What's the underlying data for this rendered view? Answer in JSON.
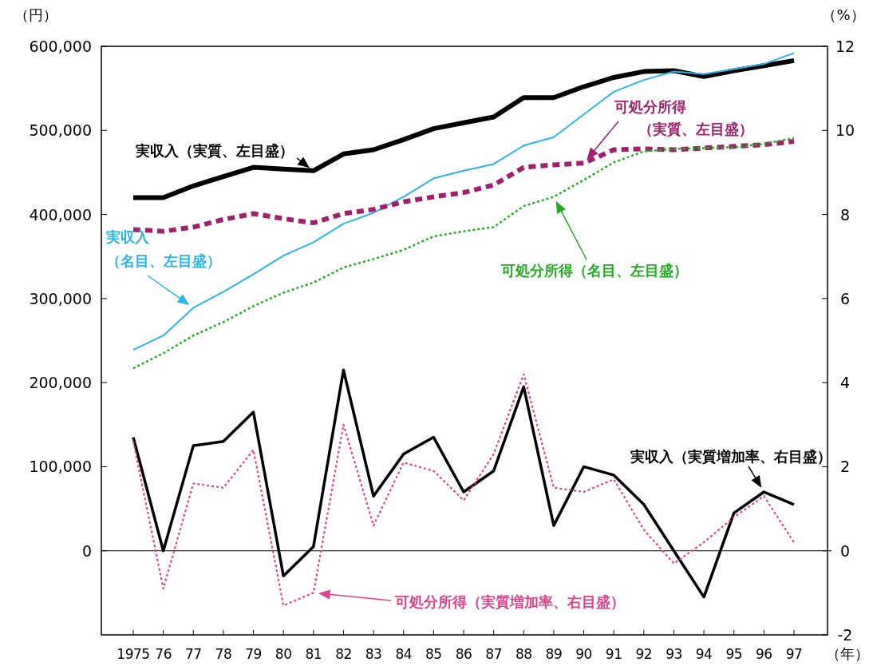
{
  "chart_data": {
    "type": "line",
    "ylabel": "（円）",
    "y2label": "（%）",
    "xlabel": "（年）",
    "categories": [
      "1975",
      "76",
      "77",
      "78",
      "79",
      "80",
      "81",
      "82",
      "83",
      "84",
      "85",
      "86",
      "87",
      "88",
      "89",
      "90",
      "91",
      "92",
      "93",
      "94",
      "95",
      "96",
      "97"
    ],
    "ylim": [
      -100000,
      600000
    ],
    "yticks": [
      0,
      {
        "value": 100000,
        "label": "100,000"
      },
      {
        "value": 200000,
        "label": "200,000"
      },
      {
        "value": 300000,
        "label": "300,000"
      },
      {
        "value": 400000,
        "label": "400,000"
      },
      {
        "value": 500000,
        "label": "500,000"
      },
      {
        "value": 600000,
        "label": "600,000"
      }
    ],
    "y2lim": [
      -2,
      12
    ],
    "y2ticks": [
      -2,
      0,
      2,
      4,
      6,
      8,
      10,
      12
    ],
    "grid": false,
    "ref_lines": [
      {
        "axis": "y2",
        "value": 0,
        "color": "#000000",
        "line_style": "solid"
      }
    ],
    "series": [
      {
        "name": "実収入（実質、左目盛）",
        "color": "#000000",
        "line_style": "solid",
        "values": [
          420000,
          420000,
          434000,
          445000,
          456000,
          454000,
          452000,
          472000,
          477000,
          489000,
          502000,
          509000,
          516000,
          539000,
          539000,
          552000,
          563000,
          570000,
          571000,
          564000,
          571000,
          577000,
          583000
        ]
      },
      {
        "name": "実収入（名目、左目盛）",
        "color": "#29b6e6",
        "line_style": "solid",
        "values": [
          239000,
          256000,
          289000,
          308000,
          329000,
          351000,
          367000,
          389000,
          402000,
          421000,
          443000,
          452000,
          460000,
          482000,
          492000,
          519000,
          546000,
          560000,
          570000,
          567000,
          573000,
          579000,
          592000
        ]
      },
      {
        "name": "可処分所得（実質、左目盛）",
        "color": "#a0206e",
        "line_style": "dashed",
        "values": [
          382000,
          380000,
          385000,
          394000,
          401000,
          395000,
          390000,
          401000,
          406000,
          415000,
          421000,
          426000,
          435000,
          456000,
          459000,
          461000,
          477000,
          478000,
          477000,
          479000,
          481000,
          483000,
          487000
        ]
      },
      {
        "name": "可処分所得（名目、左目盛）",
        "color": "#22aa22",
        "line_style": "dotted",
        "values": [
          217000,
          235000,
          256000,
          272000,
          291000,
          307000,
          319000,
          337000,
          347000,
          358000,
          374000,
          380000,
          385000,
          410000,
          421000,
          441000,
          462000,
          475000,
          478000,
          479000,
          480000,
          484000,
          491000
        ]
      },
      {
        "name": "実収入（実質増加率、右目盛）",
        "color": "#000000",
        "line_style": "solid",
        "axis": "y2",
        "values": [
          2.7,
          0.0,
          2.5,
          2.6,
          3.3,
          -0.6,
          0.1,
          4.3,
          1.3,
          2.3,
          2.7,
          1.4,
          1.9,
          3.9,
          0.6,
          2.0,
          1.8,
          1.1,
          0.0,
          -1.1,
          0.9,
          1.4,
          1.1
        ]
      },
      {
        "name": "可処分所得（実質増加率、右目盛）",
        "color": "#e0408a",
        "line_style": "dotted",
        "axis": "y2",
        "values": [
          2.6,
          -0.9,
          1.6,
          1.5,
          2.4,
          -1.3,
          -1.0,
          3.0,
          0.6,
          2.1,
          1.9,
          1.2,
          2.3,
          4.2,
          1.5,
          1.4,
          1.7,
          0.5,
          -0.3,
          0.2,
          0.8,
          1.3,
          0.2
        ]
      }
    ]
  }
}
